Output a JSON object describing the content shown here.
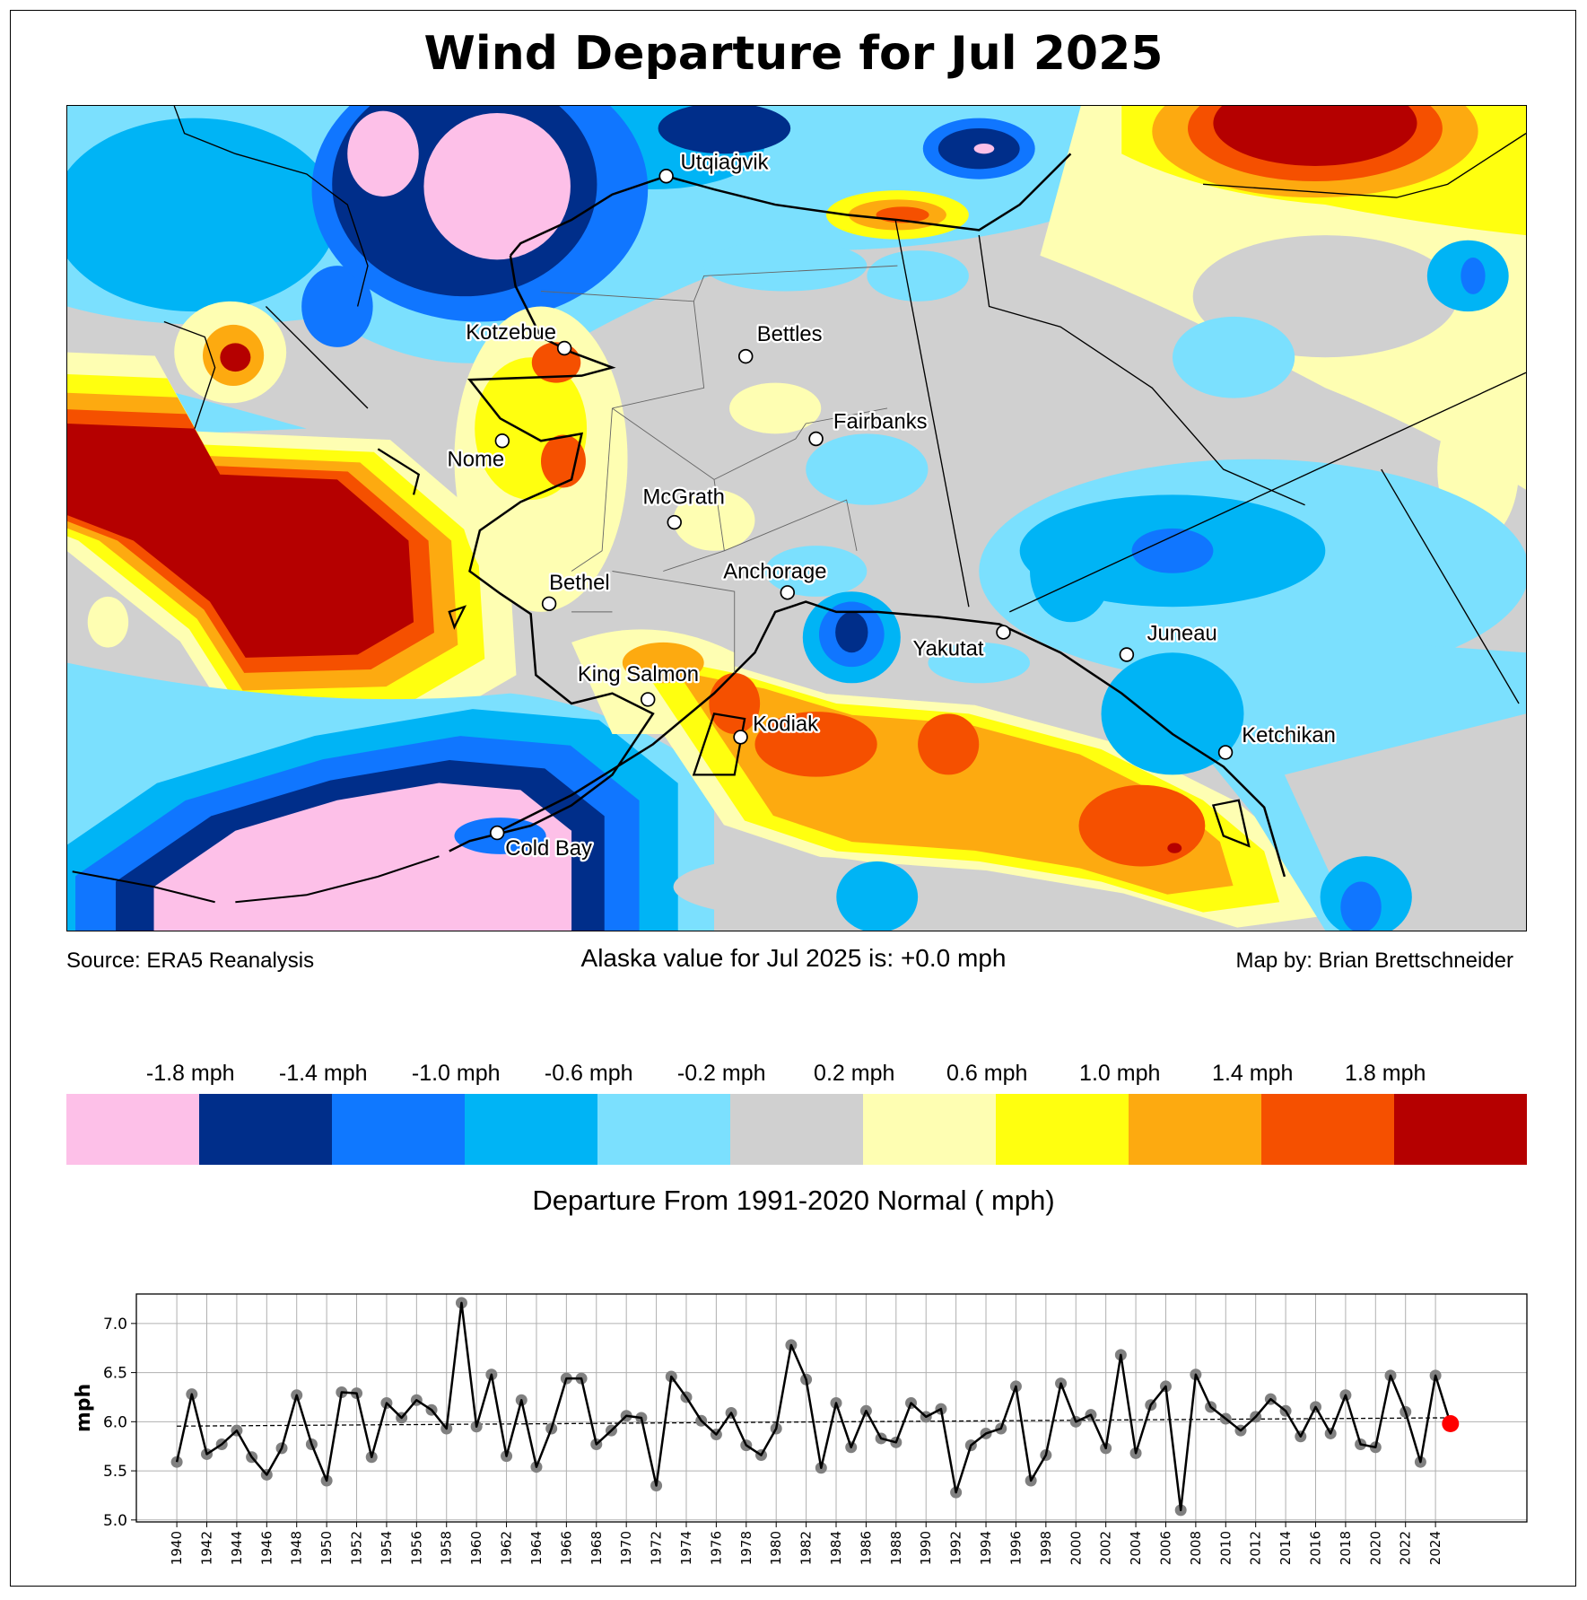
{
  "title": "Wind Departure for Jul 2025",
  "source": "Source: ERA5 Reanalysis",
  "alaska_value": "Alaska value for Jul 2025 is: +0.0 mph",
  "map_by": "Map by: Brian Brettschneider",
  "cities": [
    {
      "name": "Utqiaġvik"
    },
    {
      "name": "Kotzebue"
    },
    {
      "name": "Bettles"
    },
    {
      "name": "Fairbanks"
    },
    {
      "name": "Nome"
    },
    {
      "name": "McGrath"
    },
    {
      "name": "Anchorage"
    },
    {
      "name": "Bethel"
    },
    {
      "name": "Yakutat"
    },
    {
      "name": "Juneau"
    },
    {
      "name": "King Salmon"
    },
    {
      "name": "Kodiak"
    },
    {
      "name": "Ketchikan"
    },
    {
      "name": "Cold Bay"
    }
  ],
  "colorbar": {
    "colors": [
      "#fdc0e8",
      "#002e8a",
      "#0f78ff",
      "#00b4f5",
      "#7be0fe",
      "#d0d0d0",
      "#fefeb2",
      "#ffff0f",
      "#fdaa10",
      "#f55000",
      "#b50000"
    ],
    "labels": [
      "-1.8 mph",
      "-1.4 mph",
      "-1.0 mph",
      "-0.6 mph",
      "-0.2 mph",
      "0.2 mph",
      "0.6 mph",
      "1.0 mph",
      "1.4 mph",
      "1.8 mph"
    ],
    "title": "Departure From 1991-2020 Normal ( mph)"
  },
  "chart_data": {
    "type": "line",
    "title": "",
    "xlabel": "",
    "ylabel": "mph",
    "xlim": [
      1937.3,
      2030.1
    ],
    "ylim": [
      4.98,
      7.3
    ],
    "yticks": [
      "5.0",
      "5.5",
      "6.0",
      "6.5",
      "7.0"
    ],
    "grid": true,
    "x": [
      1940,
      1941,
      1942,
      1943,
      1944,
      1945,
      1946,
      1947,
      1948,
      1949,
      1950,
      1951,
      1952,
      1953,
      1954,
      1955,
      1956,
      1957,
      1958,
      1959,
      1960,
      1961,
      1962,
      1963,
      1964,
      1965,
      1966,
      1967,
      1968,
      1969,
      1970,
      1971,
      1972,
      1973,
      1974,
      1975,
      1976,
      1977,
      1978,
      1979,
      1980,
      1981,
      1982,
      1983,
      1984,
      1985,
      1986,
      1987,
      1988,
      1989,
      1990,
      1991,
      1992,
      1993,
      1994,
      1995,
      1996,
      1997,
      1998,
      1999,
      2000,
      2001,
      2002,
      2003,
      2004,
      2005,
      2006,
      2007,
      2008,
      2009,
      2010,
      2011,
      2012,
      2013,
      2014,
      2015,
      2016,
      2017,
      2018,
      2019,
      2020,
      2021,
      2022,
      2023,
      2024,
      2025
    ],
    "values": [
      5.59,
      6.28,
      5.67,
      5.77,
      5.91,
      5.64,
      5.46,
      5.73,
      6.27,
      5.77,
      5.4,
      6.3,
      6.29,
      5.64,
      6.19,
      6.04,
      6.22,
      6.12,
      5.93,
      7.21,
      5.95,
      6.48,
      5.65,
      6.22,
      5.54,
      5.93,
      6.44,
      6.44,
      5.77,
      5.91,
      6.06,
      6.04,
      5.35,
      6.46,
      6.25,
      6.01,
      5.87,
      6.09,
      5.76,
      5.66,
      5.93,
      6.78,
      6.43,
      5.53,
      6.19,
      5.74,
      6.11,
      5.83,
      5.79,
      6.19,
      6.05,
      6.13,
      5.28,
      5.76,
      5.88,
      5.93,
      6.36,
      5.4,
      5.66,
      6.39,
      6.0,
      6.07,
      5.73,
      6.68,
      5.68,
      6.17,
      6.36,
      5.1,
      6.48,
      6.15,
      6.03,
      5.91,
      6.05,
      6.23,
      6.11,
      5.85,
      6.15,
      5.88,
      6.27,
      5.77,
      5.74,
      6.47,
      6.1,
      5.59,
      6.47,
      5.98
    ],
    "highlight": {
      "x": 2025,
      "value": 5.98,
      "color": "#ff0000"
    },
    "trend": {
      "start": [
        1940,
        5.955
      ],
      "end": [
        2025,
        6.04
      ],
      "style": "dashed"
    },
    "marker_color": "#808080",
    "line_color": "#000000"
  }
}
